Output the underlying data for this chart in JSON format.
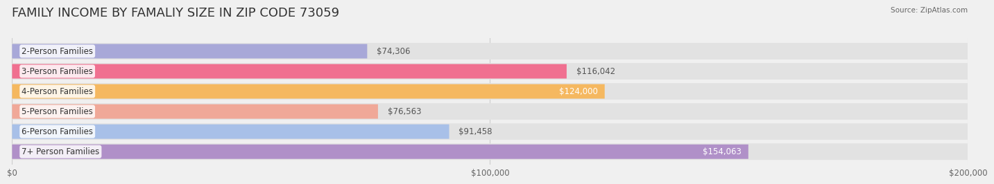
{
  "title": "FAMILY INCOME BY FAMALIY SIZE IN ZIP CODE 73059",
  "source": "Source: ZipAtlas.com",
  "categories": [
    "2-Person Families",
    "3-Person Families",
    "4-Person Families",
    "5-Person Families",
    "6-Person Families",
    "7+ Person Families"
  ],
  "values": [
    74306,
    116042,
    124000,
    76563,
    91458,
    154063
  ],
  "bar_colors": [
    "#a8a8d8",
    "#f07090",
    "#f5b860",
    "#f0a898",
    "#a8c0e8",
    "#b090c8"
  ],
  "label_colors": [
    "#555555",
    "#555555",
    "#ffffff",
    "#555555",
    "#555555",
    "#ffffff"
  ],
  "xlim": [
    0,
    200000
  ],
  "xticks": [
    0,
    100000,
    200000
  ],
  "xtick_labels": [
    "$0",
    "$100,000",
    "$200,000"
  ],
  "background_color": "#f0f0f0",
  "bar_bg_color": "#e8e8e8",
  "title_fontsize": 13,
  "label_fontsize": 8.5,
  "value_fontsize": 8.5
}
